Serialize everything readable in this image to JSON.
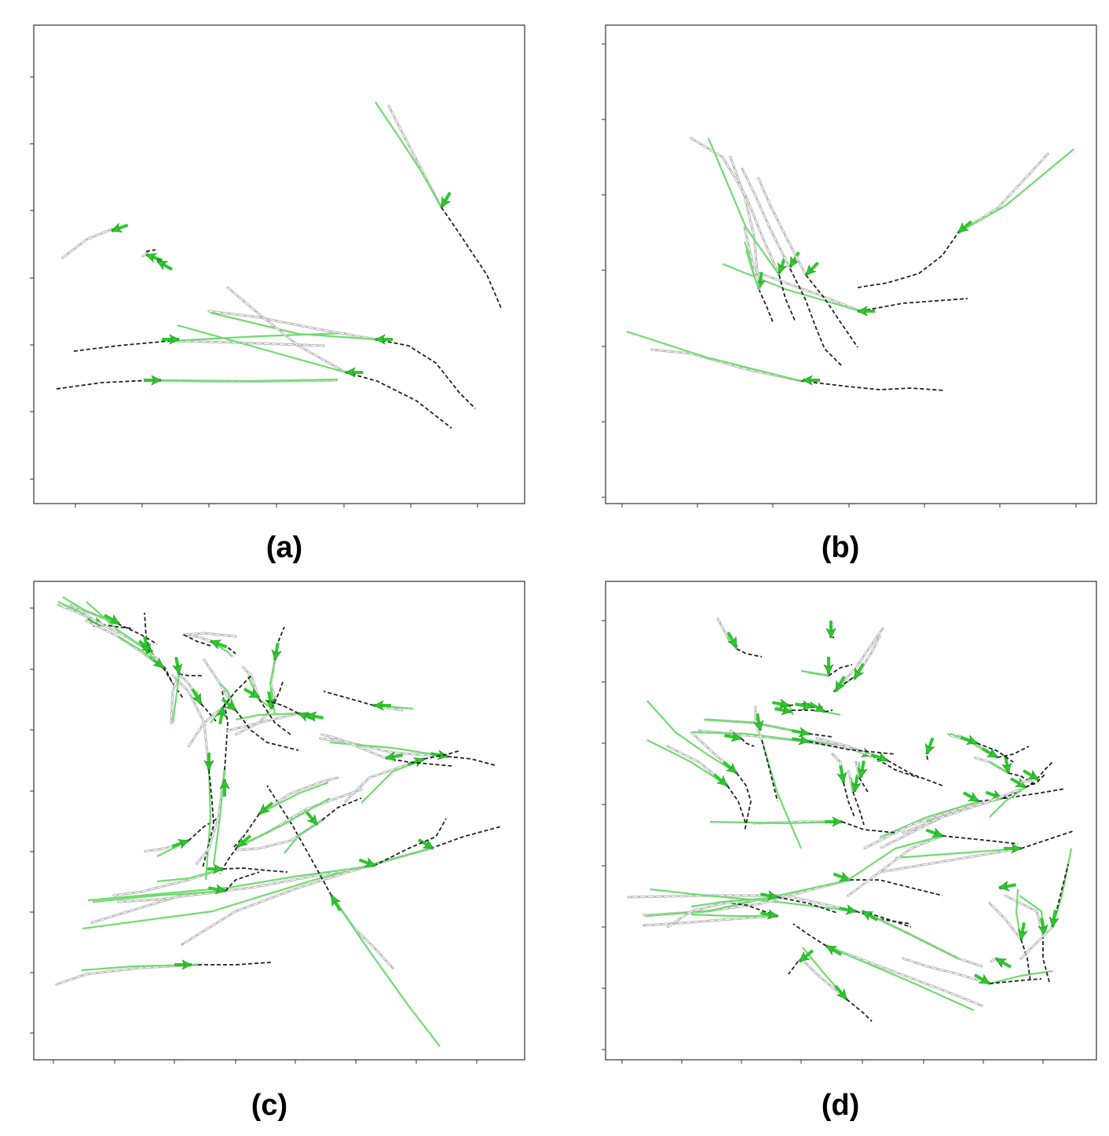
{
  "figure": {
    "panels": [
      {
        "id": "a",
        "caption": "(a)"
      },
      {
        "id": "b",
        "caption": "(b)"
      },
      {
        "id": "c",
        "caption": "(c)"
      },
      {
        "id": "d",
        "caption": "(d)"
      }
    ],
    "colors": {
      "history": "#222222",
      "ground_truth": "#b8b8b8",
      "prediction": "#6fdc6f",
      "agent": "#2ec82e",
      "frame": "#333333"
    },
    "legend_semantics": [
      "history-dashed-black",
      "ground-truth-double-gray",
      "prediction-green",
      "agent-arrow-green"
    ]
  }
}
